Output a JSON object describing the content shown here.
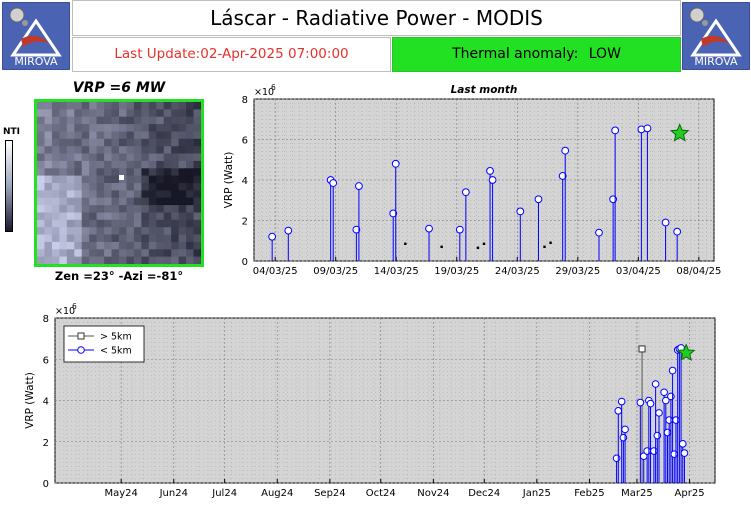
{
  "header": {
    "logo_text": "MIROVA",
    "title": "Láscar - Radiative Power - MODIS",
    "last_update": "Last Update:02-Apr-2025 07:00:00",
    "anomaly_label": "Thermal anomaly:",
    "anomaly_value": "LOW"
  },
  "colors": {
    "anomaly_bg": "#22e022",
    "update_text": "#e8302a",
    "series": "#0000ff",
    "star": "#22cc22",
    "logo_bg": "#4b63b3"
  },
  "image_panel": {
    "title": "VRP =6 MW",
    "caption": "Zen =23° -Azi =-81°",
    "colorbar_label": "NTI"
  },
  "chart_data": [
    {
      "type": "scatter",
      "title": "Last month",
      "ylabel": "VRP (Watt)",
      "xlabel": "",
      "y_exponent_label": "×10",
      "y_exponent": "6",
      "ylim": [
        0,
        8000000
      ],
      "yticks": [
        0,
        2000000,
        4000000,
        6000000,
        8000000
      ],
      "ytick_labels": [
        "0",
        "2",
        "4",
        "6",
        "8"
      ],
      "xlim_days": [
        0,
        36
      ],
      "xticks": [
        "04/03/25",
        "09/03/25",
        "14/03/25",
        "19/03/25",
        "24/03/25",
        "29/03/25",
        "03/04/25",
        "08/04/25"
      ],
      "grid": true,
      "series": [
        {
          "marker": "circle",
          "points": [
            [
              "03/03/25 18:00",
              1200000
            ],
            [
              "05/03/25 02:00",
              1500000
            ],
            [
              "08/03/25 14:00",
              4000000
            ],
            [
              "08/03/25 19:00",
              3850000
            ],
            [
              "10/03/25 17:00",
              1550000
            ],
            [
              "10/03/25 22:00",
              3700000
            ],
            [
              "13/03/25 18:00",
              2350000
            ],
            [
              "13/03/25 23:00",
              4800000
            ],
            [
              "16/03/25 17:00",
              1600000
            ],
            [
              "19/03/25 06:00",
              1550000
            ],
            [
              "19/03/25 18:00",
              3400000
            ],
            [
              "21/03/25 18:00",
              4450000
            ],
            [
              "21/03/25 23:00",
              4000000
            ],
            [
              "24/03/25 06:00",
              2450000
            ],
            [
              "25/03/25 18:00",
              3050000
            ],
            [
              "27/03/25 18:00",
              4200000
            ],
            [
              "27/03/25 23:00",
              5450000
            ],
            [
              "30/03/25 18:00",
              1400000
            ],
            [
              "31/03/25 22:00",
              3050000
            ],
            [
              "01/04/25 02:00",
              6450000
            ],
            [
              "03/04/25 06:00",
              6500000
            ],
            [
              "03/04/25 18:00",
              6550000
            ],
            [
              "05/04/25 06:00",
              1900000
            ],
            [
              "06/04/25 05:00",
              1450000
            ]
          ]
        },
        {
          "marker": "square",
          "points": [
            [
              "14/03/25 18:00",
              850000
            ],
            [
              "17/03/25 18:00",
              700000
            ],
            [
              "20/03/25 18:00",
              650000
            ],
            [
              "21/03/25 06:00",
              850000
            ],
            [
              "26/03/25 06:00",
              700000
            ],
            [
              "26/03/25 18:00",
              900000
            ]
          ]
        }
      ],
      "star": {
        "date": "06/04/25 10:00",
        "value": 6300000
      }
    },
    {
      "type": "scatter",
      "title": "",
      "ylabel": "VRP (Watt)",
      "xlabel": "",
      "y_exponent_label": "×10",
      "y_exponent": "6",
      "ylim": [
        0,
        8000000
      ],
      "yticks": [
        0,
        2000000,
        4000000,
        6000000,
        8000000
      ],
      "ytick_labels": [
        "0",
        "2",
        "4",
        "6",
        "8"
      ],
      "xticks": [
        "May24",
        "Jun24",
        "Jul24",
        "Aug24",
        "Sep24",
        "Oct24",
        "Nov24",
        "Dec24",
        "Jan25",
        "Feb25",
        "Mar25",
        "Apr25"
      ],
      "grid": true,
      "legend": {
        "position": "top-left",
        "entries": [
          "> 5km",
          "< 5km"
        ]
      },
      "series": [
        {
          "name": "> 5km",
          "marker": "square",
          "points": [
            [
              "2025-03-18",
              6500000
            ]
          ]
        },
        {
          "name": "< 5km",
          "marker": "circle",
          "points": [
            [
              "2025-03-03",
              1200000
            ],
            [
              "2025-03-04",
              3500000
            ],
            [
              "2025-03-06",
              3950000
            ],
            [
              "2025-03-07",
              2200000
            ],
            [
              "2025-03-08",
              2600000
            ],
            [
              "2025-03-17",
              3900000
            ],
            [
              "2025-03-19",
              1300000
            ],
            [
              "2025-03-21",
              1550000
            ],
            [
              "2025-03-22",
              4000000
            ],
            [
              "2025-03-23",
              3850000
            ],
            [
              "2025-03-25",
              1550000
            ],
            [
              "2025-03-26",
              4800000
            ],
            [
              "2025-03-27",
              2300000
            ],
            [
              "2025-03-28",
              3400000
            ],
            [
              "2025-03-31",
              4400000
            ],
            [
              "2025-04-01",
              4000000
            ],
            [
              "2025-04-02",
              2450000
            ],
            [
              "2025-04-03",
              3050000
            ],
            [
              "2025-04-04",
              4200000
            ],
            [
              "2025-04-05",
              5450000
            ],
            [
              "2025-04-06",
              1400000
            ],
            [
              "2025-04-07",
              3050000
            ],
            [
              "2025-04-08",
              6450000
            ],
            [
              "2025-04-09",
              6500000
            ],
            [
              "2025-04-10",
              6550000
            ],
            [
              "2025-04-11",
              1900000
            ],
            [
              "2025-04-12",
              1450000
            ]
          ]
        }
      ],
      "star": {
        "date": "2025-04-13",
        "value": 6300000
      }
    }
  ]
}
